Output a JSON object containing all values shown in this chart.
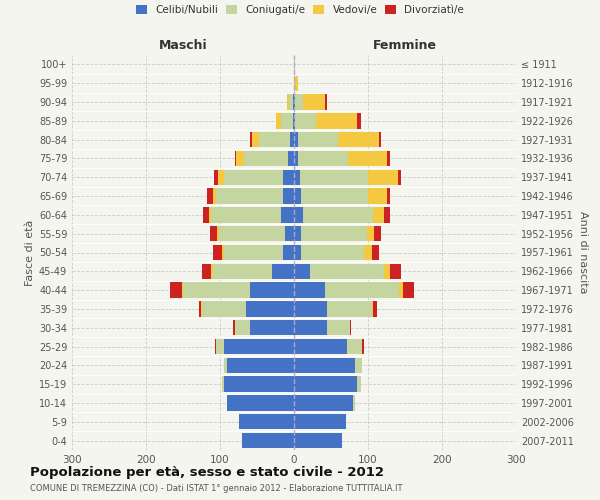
{
  "age_groups": [
    "0-4",
    "5-9",
    "10-14",
    "15-19",
    "20-24",
    "25-29",
    "30-34",
    "35-39",
    "40-44",
    "45-49",
    "50-54",
    "55-59",
    "60-64",
    "65-69",
    "70-74",
    "75-79",
    "80-84",
    "85-89",
    "90-94",
    "95-99",
    "100+"
  ],
  "birth_years": [
    "2007-2011",
    "2002-2006",
    "1997-2001",
    "1992-1996",
    "1987-1991",
    "1982-1986",
    "1977-1981",
    "1972-1976",
    "1967-1971",
    "1962-1966",
    "1957-1961",
    "1952-1956",
    "1947-1951",
    "1942-1946",
    "1937-1941",
    "1932-1936",
    "1927-1931",
    "1922-1926",
    "1917-1921",
    "1912-1916",
    "≤ 1911"
  ],
  "male_celibi": [
    70,
    75,
    90,
    95,
    90,
    95,
    60,
    65,
    60,
    30,
    15,
    12,
    17,
    15,
    15,
    8,
    5,
    2,
    2,
    0,
    0
  ],
  "male_coniugati": [
    0,
    0,
    0,
    2,
    5,
    10,
    20,
    60,
    90,
    80,
    80,
    90,
    95,
    90,
    80,
    60,
    42,
    15,
    5,
    0,
    0
  ],
  "male_vedovi": [
    0,
    0,
    0,
    0,
    0,
    0,
    0,
    1,
    2,
    2,
    2,
    2,
    3,
    5,
    8,
    10,
    10,
    8,
    2,
    0,
    0
  ],
  "male_divorziati": [
    0,
    0,
    0,
    0,
    0,
    2,
    2,
    3,
    15,
    12,
    13,
    10,
    8,
    8,
    5,
    2,
    2,
    0,
    0,
    0,
    0
  ],
  "female_celibi": [
    65,
    70,
    80,
    85,
    82,
    72,
    45,
    45,
    42,
    22,
    10,
    10,
    12,
    10,
    8,
    5,
    5,
    2,
    2,
    0,
    0
  ],
  "female_coniugati": [
    0,
    0,
    2,
    5,
    10,
    20,
    30,
    60,
    100,
    100,
    85,
    88,
    95,
    90,
    92,
    68,
    55,
    28,
    10,
    2,
    0
  ],
  "female_vedovi": [
    0,
    0,
    0,
    0,
    0,
    0,
    0,
    2,
    5,
    8,
    10,
    10,
    15,
    25,
    40,
    52,
    55,
    55,
    30,
    3,
    1
  ],
  "female_divorziati": [
    0,
    0,
    0,
    0,
    0,
    2,
    2,
    5,
    15,
    15,
    10,
    10,
    8,
    5,
    5,
    5,
    2,
    5,
    2,
    0,
    0
  ],
  "color_celibi": "#4472c4",
  "color_coniugati": "#c5d5a0",
  "color_vedovi": "#f5c842",
  "color_divorziati": "#cc2222",
  "title": "Popolazione per età, sesso e stato civile - 2012",
  "subtitle": "COMUNE DI TREMEZZINA (CO) - Dati ISTAT 1° gennaio 2012 - Elaborazione TUTTITALIA.IT",
  "xlabel_left": "Maschi",
  "xlabel_right": "Femmine",
  "ylabel_left": "Fasce di età",
  "ylabel_right": "Anni di nascita",
  "xlim": 300,
  "background_color": "#f5f5f0",
  "grid_color": "#cccccc"
}
